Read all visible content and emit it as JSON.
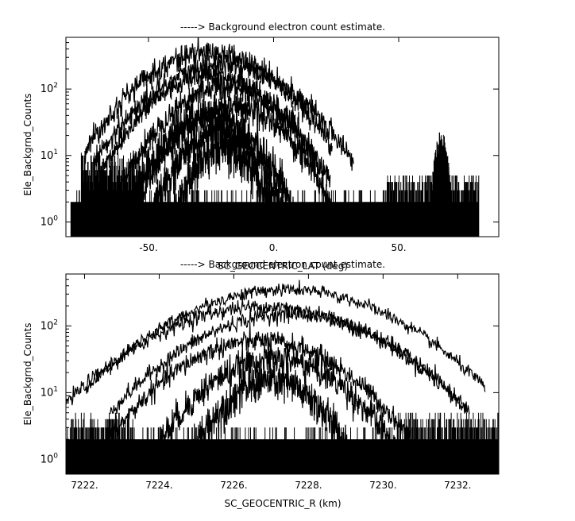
{
  "chart_data": [
    {
      "type": "line",
      "title": "-----> Background electron count estimate.",
      "xlabel": "SC_GEOCENTRIC_LAT (deg)",
      "ylabel": "Ele_Backgrnd_Counts",
      "xlim": [
        -83,
        90
      ],
      "ylim": [
        0.6,
        600
      ],
      "yscale": "log",
      "xticks": [
        {
          "value": -50,
          "label": "-50."
        },
        {
          "value": 0,
          "label": "0."
        },
        {
          "value": 50,
          "label": "50."
        }
      ],
      "yticks": [
        {
          "value": 1,
          "base": "10",
          "exp": "0"
        },
        {
          "value": 10,
          "base": "10",
          "exp": "1"
        },
        {
          "value": 100,
          "base": "10",
          "exp": "2"
        }
      ],
      "data_xrange": [
        -81,
        82
      ],
      "baseline_counts": [
        1,
        2
      ],
      "peaks": [
        {
          "center": -26,
          "width": 19,
          "peak": 350,
          "noise": 0.09
        },
        {
          "center": -20,
          "width": 20,
          "peak": 230,
          "noise": 0.09
        },
        {
          "center": -25,
          "width": 17,
          "peak": 160,
          "noise": 0.09
        },
        {
          "center": -19,
          "width": 16,
          "peak": 110,
          "noise": 0.1
        },
        {
          "center": -16,
          "width": 15,
          "peak": 55,
          "noise": 0.12
        },
        {
          "center": -25,
          "width": 13,
          "peak": 40,
          "noise": 0.14
        },
        {
          "center": -22,
          "width": 11,
          "peak": 22,
          "noise": 0.16
        },
        {
          "center": -20,
          "width": 9,
          "peak": 13,
          "noise": 0.18
        }
      ],
      "shoulders": [
        {
          "from": -77,
          "to": -52,
          "level": 7,
          "spread": 4
        },
        {
          "from": 45,
          "to": 82,
          "level": 3,
          "spread": 2
        }
      ],
      "spike": {
        "center": 67,
        "width": 2,
        "peak": 20
      }
    },
    {
      "type": "line",
      "title": "-----> Background electron count estimate.",
      "xlabel": "SC_GEOCENTRIC_R (km)",
      "ylabel": "Ele_Backgrnd_Counts",
      "xlim": [
        7221.5,
        7233.1
      ],
      "ylim": [
        0.6,
        600
      ],
      "yscale": "log",
      "xticks": [
        {
          "value": 7222,
          "label": "7222."
        },
        {
          "value": 7224,
          "label": "7224."
        },
        {
          "value": 7226,
          "label": "7226."
        },
        {
          "value": 7228,
          "label": "7228."
        },
        {
          "value": 7230,
          "label": "7230."
        },
        {
          "value": 7232,
          "label": "7232."
        }
      ],
      "yticks": [
        {
          "value": 1,
          "base": "10",
          "exp": "0"
        },
        {
          "value": 10,
          "base": "10",
          "exp": "1"
        },
        {
          "value": 100,
          "base": "10",
          "exp": "2"
        }
      ],
      "data_xrange": [
        7221.5,
        7233.1
      ],
      "baseline_counts": [
        1,
        2
      ],
      "peaks": [
        {
          "center": 7227.4,
          "width": 2.05,
          "peak": 350,
          "noise": 0.05
        },
        {
          "center": 7226.8,
          "width": 2.05,
          "peak": 195,
          "noise": 0.06
        },
        {
          "center": 7227.5,
          "width": 1.85,
          "peak": 150,
          "noise": 0.06
        },
        {
          "center": 7226.7,
          "width": 1.55,
          "peak": 60,
          "noise": 0.08
        },
        {
          "center": 7227.1,
          "width": 1.3,
          "peak": 32,
          "noise": 0.12
        },
        {
          "center": 7227.0,
          "width": 0.95,
          "peak": 15,
          "noise": 0.16
        }
      ],
      "shoulders": [
        {
          "from": 7221.6,
          "to": 7223.3,
          "level": 3,
          "spread": 2
        },
        {
          "from": 7230.4,
          "to": 7233.1,
          "level": 3,
          "spread": 2
        }
      ],
      "spike": null
    }
  ]
}
